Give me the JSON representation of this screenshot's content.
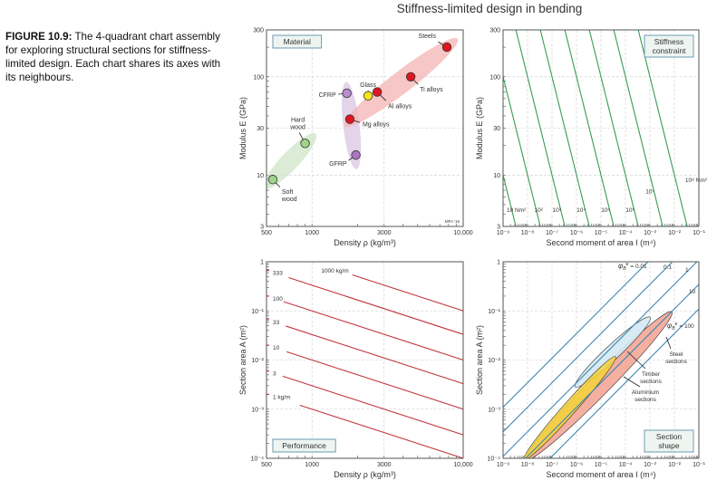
{
  "caption": {
    "label": "FIGURE 10.9:",
    "text": "The 4-quadrant chart assembly for exploring structural sections for stiffness-limited design. Each chart shares its axes with its neighbours."
  },
  "title": "Stiffness-limited design in bending",
  "chart_data": [
    {
      "panel": "top-left",
      "type": "scatter",
      "label": [
        "Material"
      ],
      "xlabel": "Density ρ (kg/m³)",
      "ylabel": "Modulus E (GPa)",
      "xscale": "log",
      "yscale": "log",
      "xlim": [
        500,
        10000
      ],
      "ylim": [
        3,
        300
      ],
      "xticks": [
        {
          "v": 500,
          "t": "500"
        },
        {
          "v": 1000,
          "t": "1000"
        },
        {
          "v": 3000,
          "t": "3000"
        },
        {
          "v": 10000,
          "t": "10,000"
        }
      ],
      "yticks": [
        {
          "v": 3,
          "t": "3"
        },
        {
          "v": 10,
          "t": "10"
        },
        {
          "v": 30,
          "t": "30"
        },
        {
          "v": 100,
          "t": "100"
        },
        {
          "v": 300,
          "t": "300"
        }
      ],
      "grid": true,
      "credit": "MFA '16",
      "envelopes": [
        {
          "group": "woods",
          "from": [
            510,
            8
          ],
          "to": [
            1000,
            24
          ],
          "color": "#cfe6c8"
        },
        {
          "group": "composites",
          "from": [
            1700,
            78
          ],
          "to": [
            1950,
            13
          ],
          "color": "#d9c6e2"
        },
        {
          "group": "metals",
          "from": [
            1750,
            34
          ],
          "to": [
            8600,
            225
          ],
          "color": "#f4b3b3"
        }
      ],
      "points": [
        {
          "label": [
            "Steels"
          ],
          "x": 7800,
          "y": 200,
          "color": "#e0161e"
        },
        {
          "label": [
            "Ti alloys"
          ],
          "x": 4500,
          "y": 100,
          "color": "#e0161e"
        },
        {
          "label": [
            "Al alloys"
          ],
          "x": 2700,
          "y": 70,
          "color": "#e0161e"
        },
        {
          "label": [
            "Glass"
          ],
          "x": 2350,
          "y": 64,
          "color": "#f7e21c"
        },
        {
          "label": [
            "CFRP"
          ],
          "x": 1700,
          "y": 68,
          "color": "#b98ed0"
        },
        {
          "label": [
            "Mg alloys"
          ],
          "x": 1780,
          "y": 37,
          "color": "#e0161e"
        },
        {
          "label": [
            "GFRP"
          ],
          "x": 1950,
          "y": 16,
          "color": "#a875c4"
        },
        {
          "label": [
            "Hard",
            "wood"
          ],
          "x": 900,
          "y": 21,
          "color": "#9fd48a"
        },
        {
          "label": [
            "Soft",
            "wood"
          ],
          "x": 550,
          "y": 9,
          "color": "#9fd48a"
        }
      ]
    },
    {
      "panel": "top-right",
      "type": "line",
      "label": [
        "Stiffness",
        "constraint"
      ],
      "xlabel": "Second moment of area I (m⁴)",
      "ylabel": "Modulus E (GPa)",
      "xscale": "log",
      "yscale": "log",
      "xlim": [
        1e-09,
        0.1
      ],
      "ylim": [
        3,
        300
      ],
      "xticks": [
        {
          "v": 1e-09,
          "t": "10⁻⁹"
        },
        {
          "v": 1e-08,
          "t": "10⁻⁸"
        },
        {
          "v": 1e-07,
          "t": "10⁻⁷"
        },
        {
          "v": 1e-06,
          "t": "10⁻⁶"
        },
        {
          "v": 1e-05,
          "t": "10⁻⁵"
        },
        {
          "v": 0.0001,
          "t": "10⁻⁴"
        },
        {
          "v": 0.001,
          "t": "10⁻³"
        },
        {
          "v": 0.01,
          "t": "10⁻²"
        },
        {
          "v": 0.1,
          "t": "10⁻¹"
        }
      ],
      "yticks": [
        {
          "v": 3,
          "t": "3"
        },
        {
          "v": 10,
          "t": "10"
        },
        {
          "v": 30,
          "t": "30"
        },
        {
          "v": 100,
          "t": "100"
        },
        {
          "v": 300,
          "t": "300"
        }
      ],
      "grid": true,
      "line_color": "#3a9a55",
      "series": [
        {
          "EI": 10,
          "label": "10 Nm²"
        },
        {
          "EI": 100,
          "label": "10²"
        },
        {
          "EI": 1000,
          "label": "10³"
        },
        {
          "EI": 10000,
          "label": "10⁴"
        },
        {
          "EI": 100000,
          "label": "10⁵"
        },
        {
          "EI": 1000000,
          "label": "10⁶"
        },
        {
          "EI": 10000000,
          "label": "10⁷"
        },
        {
          "EI": 100000000,
          "label": "10⁸ Nm²"
        }
      ]
    },
    {
      "panel": "bottom-left",
      "type": "line",
      "label": [
        "Performance"
      ],
      "xlabel": "Density ρ (kg/m³)",
      "ylabel": "Section area A (m²)",
      "xscale": "log",
      "yscale": "log",
      "xlim": [
        500,
        10000
      ],
      "ylim": [
        0.0001,
        1
      ],
      "xticks": [
        {
          "v": 500,
          "t": "500"
        },
        {
          "v": 1000,
          "t": "1000"
        },
        {
          "v": 3000,
          "t": "3000"
        },
        {
          "v": 10000,
          "t": "10,000"
        }
      ],
      "yticks": [
        {
          "v": 0.0001,
          "t": "10⁻⁴"
        },
        {
          "v": 0.001,
          "t": "10⁻³"
        },
        {
          "v": 0.01,
          "t": "10⁻²"
        },
        {
          "v": 0.1,
          "t": "10⁻¹"
        },
        {
          "v": 1,
          "t": "1"
        }
      ],
      "grid": true,
      "line_color": "#c2343c",
      "series": [
        {
          "mass_per_length": 1,
          "label": "1 kg/m",
          "start_density": 830
        },
        {
          "mass_per_length": 3,
          "label": "3",
          "start_density": 640
        },
        {
          "mass_per_length": 10,
          "label": "10",
          "start_density": 680
        },
        {
          "mass_per_length": 33,
          "label": "33",
          "start_density": 670
        },
        {
          "mass_per_length": 100,
          "label": "100",
          "start_density": 650
        },
        {
          "mass_per_length": 333,
          "label": "333",
          "start_density": 700
        },
        {
          "mass_per_length": 1000,
          "label": "1000 kg/m",
          "start_density": 1850
        }
      ]
    },
    {
      "panel": "bottom-right",
      "type": "line",
      "label": [
        "Section",
        "shape"
      ],
      "xlabel": "Second moment of area I (m⁴)",
      "ylabel": "Section area A (m²)",
      "xscale": "log",
      "yscale": "log",
      "xlim": [
        1e-09,
        0.1
      ],
      "ylim": [
        0.0001,
        1
      ],
      "xticks": [
        {
          "v": 1e-09,
          "t": "10⁻⁹"
        },
        {
          "v": 1e-08,
          "t": "10⁻⁸"
        },
        {
          "v": 1e-07,
          "t": "10⁻⁷"
        },
        {
          "v": 1e-06,
          "t": "10⁻⁶"
        },
        {
          "v": 1e-05,
          "t": "10⁻⁵"
        },
        {
          "v": 0.0001,
          "t": "10⁻⁴"
        },
        {
          "v": 0.001,
          "t": "10⁻³"
        },
        {
          "v": 0.01,
          "t": "10⁻²"
        },
        {
          "v": 0.1,
          "t": "10⁻¹"
        }
      ],
      "yticks": [
        {
          "v": 0.0001,
          "t": "10⁻⁴"
        },
        {
          "v": 0.001,
          "t": "10⁻³"
        },
        {
          "v": 0.01,
          "t": "10⁻²"
        },
        {
          "v": 0.1,
          "t": "10⁻¹"
        },
        {
          "v": 1,
          "t": "1"
        }
      ],
      "grid": true,
      "line_color": "#3b86b0",
      "symbol": {
        "main": "φ",
        "sub": "B",
        "sup": "e"
      },
      "series": [
        {
          "phi": 0.01,
          "label": "= 0.01",
          "show_symbol": true
        },
        {
          "phi": 0.1,
          "label": "0.1",
          "show_symbol": false
        },
        {
          "phi": 1,
          "label": "1",
          "show_symbol": false
        },
        {
          "phi": 10,
          "label": "10",
          "show_symbol": false
        },
        {
          "phi": 100,
          "label": "= 100",
          "show_symbol": true
        }
      ],
      "envelopes": [
        {
          "label": [
            "Steel",
            "sections"
          ],
          "from": [
            1e-08,
            0.0001
          ],
          "to": [
            0.007,
            0.09
          ],
          "color": "#f2a190"
        },
        {
          "label": [
            "Timber",
            "sections"
          ],
          "from": [
            1e-06,
            0.003
          ],
          "to": [
            0.0009,
            0.07
          ],
          "color": "#d4e8f2"
        },
        {
          "label": [
            "Aluminium",
            "sections"
          ],
          "from": [
            8e-09,
            0.0001
          ],
          "to": [
            3.5e-05,
            0.011
          ],
          "color": "#f5d43a"
        }
      ]
    }
  ]
}
